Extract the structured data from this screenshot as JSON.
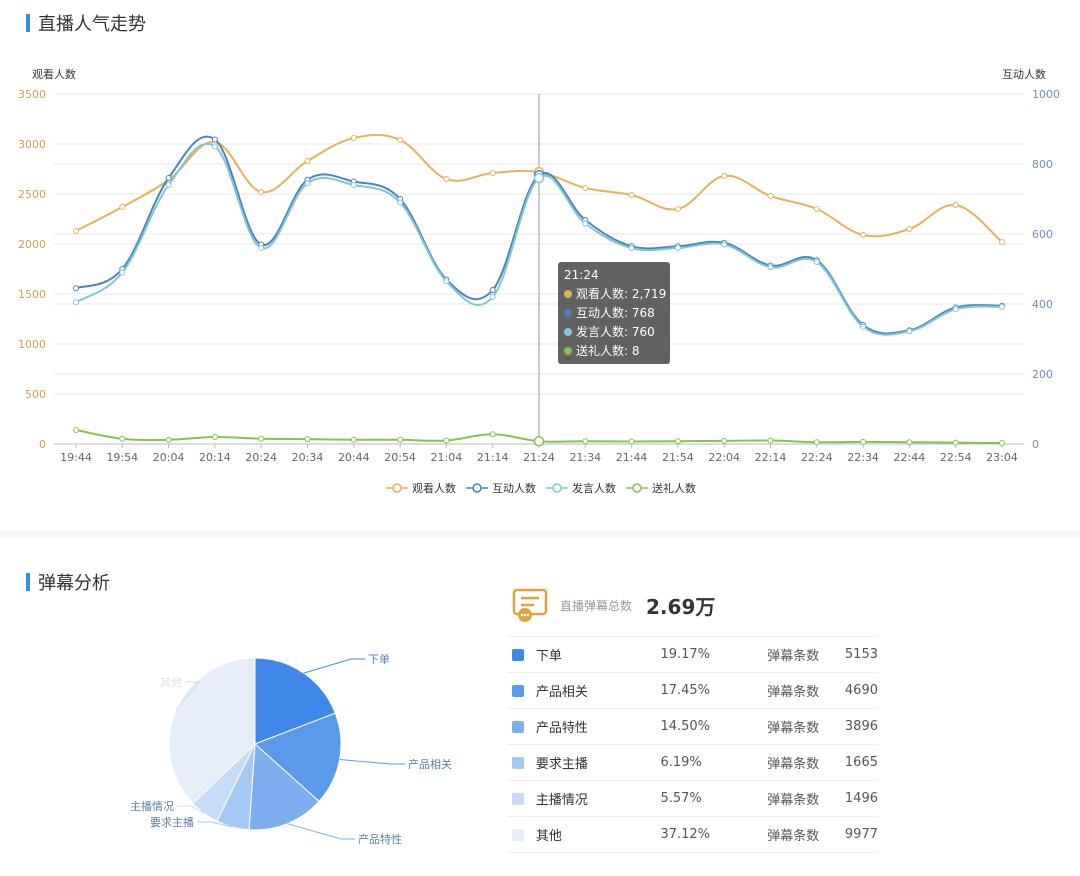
{
  "sections": {
    "trend_title": "直播人气走势",
    "danmu_title": "弹幕分析"
  },
  "colors": {
    "watch": "#e2b35c",
    "interact": "#4f82b9",
    "speak": "#7fc7d9",
    "gift": "#8cbf4f",
    "accent": "#3d8fd8"
  },
  "chart_data": [
    {
      "type": "line",
      "ylabel": "观看人数",
      "y2label": "互动人数",
      "ylim": [
        0,
        3500
      ],
      "y2lim": [
        0,
        1000
      ],
      "yticks": [
        "0",
        "500",
        "1000",
        "1500",
        "2000",
        "2500",
        "3000",
        "3500"
      ],
      "y2ticks": [
        "0",
        "200",
        "400",
        "600",
        "800",
        "1000"
      ],
      "x": [
        "19:44",
        "19:54",
        "20:04",
        "20:14",
        "20:24",
        "20:34",
        "20:44",
        "20:54",
        "21:04",
        "21:14",
        "21:24",
        "21:34",
        "21:44",
        "21:54",
        "22:04",
        "22:14",
        "22:24",
        "22:34",
        "22:44",
        "22:54",
        "23:04"
      ],
      "series": [
        {
          "name": "观看人数",
          "axis": "left",
          "values": [
            2130,
            2370,
            2640,
            3020,
            2520,
            2830,
            3060,
            3040,
            2650,
            2710,
            2719,
            2560,
            2490,
            2350,
            2680,
            2480,
            2350,
            2090,
            2150,
            2390,
            2020
          ]
        },
        {
          "name": "互动人数",
          "axis": "right",
          "values": [
            445,
            500,
            760,
            870,
            570,
            755,
            750,
            700,
            470,
            440,
            768,
            640,
            565,
            565,
            575,
            510,
            525,
            340,
            325,
            390,
            395
          ]
        },
        {
          "name": "发言人数",
          "axis": "right",
          "values": [
            405,
            490,
            740,
            850,
            560,
            745,
            740,
            690,
            465,
            420,
            760,
            630,
            560,
            560,
            570,
            505,
            520,
            335,
            322,
            385,
            392
          ]
        },
        {
          "name": "送礼人数",
          "axis": "right",
          "values": [
            40,
            15,
            12,
            20,
            15,
            14,
            12,
            12,
            10,
            28,
            8,
            8,
            7,
            8,
            9,
            10,
            5,
            6,
            5,
            4,
            3
          ]
        }
      ],
      "legend_position": "bottom",
      "grid": true,
      "tooltip": {
        "time": "21:24",
        "rows": [
          {
            "label": "观看人数: 2,719"
          },
          {
            "label": "互动人数: 768"
          },
          {
            "label": "发言人数: 760"
          },
          {
            "label": "送礼人数: 8"
          }
        ]
      }
    },
    {
      "type": "pie",
      "slices": [
        {
          "name": "下单",
          "percent": 19.17,
          "count": 5153,
          "color": "#3f88e8"
        },
        {
          "name": "产品相关",
          "percent": 17.45,
          "count": 4690,
          "color": "#5b9aea"
        },
        {
          "name": "产品特性",
          "percent": 14.5,
          "count": 3896,
          "color": "#7dafef"
        },
        {
          "name": "要求主播",
          "percent": 6.19,
          "count": 1665,
          "color": "#a6c8f4"
        },
        {
          "name": "主播情况",
          "percent": 5.57,
          "count": 1496,
          "color": "#c7dcf6"
        },
        {
          "name": "其他",
          "percent": 37.12,
          "count": 9977,
          "color": "#e4edf8"
        }
      ]
    }
  ],
  "danmu": {
    "summary_label": "直播弹幕总数",
    "summary_value": "2.69万",
    "count_label": "弹幕条数",
    "rows": [
      {
        "name": "下单",
        "pct": "19.17%",
        "count": "5153"
      },
      {
        "name": "产品相关",
        "pct": "17.45%",
        "count": "4690"
      },
      {
        "name": "产品特性",
        "pct": "14.50%",
        "count": "3896"
      },
      {
        "name": "要求主播",
        "pct": "6.19%",
        "count": "1665"
      },
      {
        "name": "主播情况",
        "pct": "5.57%",
        "count": "1496"
      },
      {
        "name": "其他",
        "pct": "37.12%",
        "count": "9977"
      }
    ]
  }
}
